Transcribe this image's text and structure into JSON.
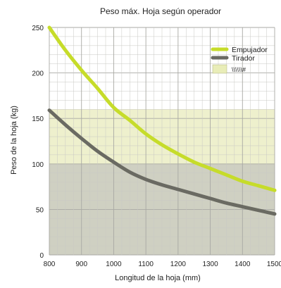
{
  "chart_data": {
    "type": "line",
    "title": "Peso máx. Hoja según operador",
    "xlabel": "Longitud de la hoja (mm)",
    "ylabel": "Peso de la hoja (kg)",
    "xlim": [
      800,
      1500
    ],
    "ylim": [
      0,
      250
    ],
    "x_ticks": [
      800,
      900,
      1000,
      1100,
      1200,
      1300,
      1400,
      1500
    ],
    "y_ticks": [
      0,
      50,
      100,
      150,
      200,
      250
    ],
    "grid": true,
    "legend_position": "top-right",
    "series": [
      {
        "name": "Empujador",
        "color": "#c6dc2a",
        "x": [
          800,
          850,
          900,
          950,
          1000,
          1050,
          1100,
          1150,
          1200,
          1250,
          1300,
          1350,
          1400,
          1450,
          1500
        ],
        "y": [
          250,
          225,
          203,
          183,
          162,
          148,
          133,
          121,
          111,
          102,
          95,
          88,
          81,
          76,
          71
        ]
      },
      {
        "name": "Tirador",
        "color": "#6a6a62",
        "x": [
          800,
          850,
          900,
          950,
          1000,
          1050,
          1100,
          1150,
          1200,
          1250,
          1300,
          1350,
          1400,
          1450,
          1500
        ],
        "y": [
          159,
          143,
          128,
          114,
          102,
          91,
          83,
          77,
          72,
          67,
          62,
          57,
          53,
          49,
          45
        ]
      }
    ],
    "regions": [
      {
        "kind": "band",
        "y_from": 0,
        "y_to": 100,
        "color": "#cfd0c2"
      },
      {
        "kind": "band",
        "y_from": 100,
        "y_to": 160,
        "color": "#eef0cd"
      }
    ],
    "legend_swatch": {
      "color": "#e9edb8",
      "label": "\\\\\\\\\\\\#"
    }
  }
}
